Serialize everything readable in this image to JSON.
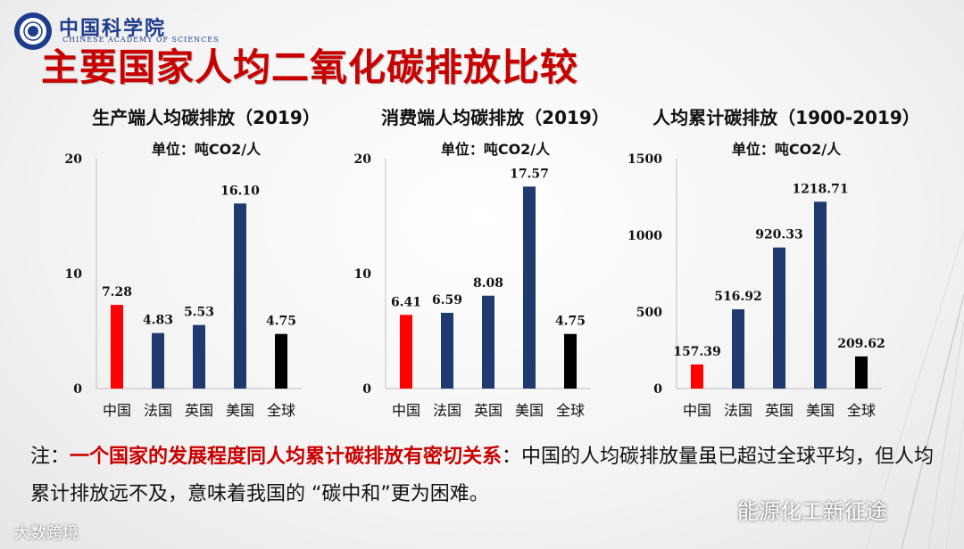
{
  "header": {
    "logo_cn": "中国科学院",
    "logo_en": "CHINESE ACADEMY OF SCIENCES",
    "title": "主要国家人均二氧化碳排放比较"
  },
  "unit_label": "单位：吨CO2/人",
  "chart_data": [
    {
      "type": "bar",
      "title": "生产端人均碳排放（2019）",
      "categories": [
        "中国",
        "法国",
        "英国",
        "美国",
        "全球"
      ],
      "values": [
        7.28,
        4.83,
        5.53,
        16.1,
        4.75
      ],
      "value_labels": [
        "7.28",
        "4.83",
        "5.53",
        "16.10",
        "4.75"
      ],
      "colors": [
        "#ff0000",
        "#1f3a6e",
        "#1f3a6e",
        "#1f3a6e",
        "#000000"
      ],
      "ylim": [
        0,
        20
      ],
      "yticks": [
        0,
        10,
        20
      ]
    },
    {
      "type": "bar",
      "title": "消费端人均碳排放（2019）",
      "categories": [
        "中国",
        "法国",
        "英国",
        "美国",
        "全球"
      ],
      "values": [
        6.41,
        6.59,
        8.08,
        17.57,
        4.75
      ],
      "value_labels": [
        "6.41",
        "6.59",
        "8.08",
        "17.57",
        "4.75"
      ],
      "colors": [
        "#ff0000",
        "#1f3a6e",
        "#1f3a6e",
        "#1f3a6e",
        "#000000"
      ],
      "ylim": [
        0,
        20
      ],
      "yticks": [
        0,
        10,
        20
      ]
    },
    {
      "type": "bar",
      "title": "人均累计碳排放（1900-2019）",
      "categories": [
        "中国",
        "法国",
        "英国",
        "美国",
        "全球"
      ],
      "values": [
        157.39,
        516.92,
        920.33,
        1218.71,
        209.62
      ],
      "value_labels": [
        "157.39",
        "516.92",
        "920.33",
        "1218.71",
        "209.62"
      ],
      "colors": [
        "#ff0000",
        "#1f3a6e",
        "#1f3a6e",
        "#1f3a6e",
        "#000000"
      ],
      "ylim": [
        0,
        1500
      ],
      "yticks": [
        0,
        500,
        1000,
        1500
      ]
    }
  ],
  "note": {
    "prefix": "注：",
    "highlight": "一个国家的发展程度同人均累计碳排放有密切关系",
    "rest": "：中国的人均碳排放量虽已超过全球平均，但人均累计排放远不及，意味着我国的 “碳中和”更为困难。"
  },
  "watermarks": {
    "left": "大数跨境",
    "right": "能源化工新征途"
  }
}
